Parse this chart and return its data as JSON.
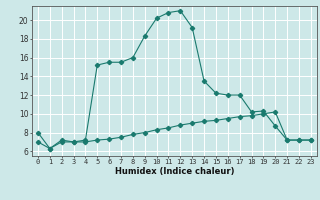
{
  "title": "",
  "xlabel": "Humidex (Indice chaleur)",
  "ylabel": "",
  "bg_color": "#cde8e8",
  "line_color": "#1a7a6e",
  "grid_color": "#ffffff",
  "line1_x": [
    0,
    1,
    2,
    3,
    4,
    5,
    6,
    7,
    8,
    9,
    10,
    11,
    12,
    13,
    14,
    15,
    16,
    17,
    18,
    19,
    20,
    21,
    22,
    23
  ],
  "line1_y": [
    8.0,
    6.3,
    7.2,
    7.0,
    7.2,
    15.2,
    15.5,
    15.5,
    16.0,
    18.3,
    20.2,
    20.8,
    21.0,
    19.2,
    13.5,
    12.2,
    12.0,
    12.0,
    10.2,
    10.3,
    8.7,
    7.2,
    7.2,
    7.2
  ],
  "line2_x": [
    0,
    1,
    2,
    3,
    4,
    5,
    6,
    7,
    8,
    9,
    10,
    11,
    12,
    13,
    14,
    15,
    16,
    17,
    18,
    19,
    20,
    21,
    22,
    23
  ],
  "line2_y": [
    7.0,
    6.3,
    7.0,
    7.0,
    7.0,
    7.2,
    7.3,
    7.5,
    7.8,
    8.0,
    8.3,
    8.5,
    8.8,
    9.0,
    9.2,
    9.3,
    9.5,
    9.7,
    9.8,
    10.0,
    10.2,
    7.2,
    7.2,
    7.2
  ],
  "xlim": [
    -0.5,
    23.5
  ],
  "ylim": [
    5.5,
    21.5
  ],
  "yticks": [
    6,
    8,
    10,
    12,
    14,
    16,
    18,
    20
  ],
  "xticks": [
    0,
    1,
    2,
    3,
    4,
    5,
    6,
    7,
    8,
    9,
    10,
    11,
    12,
    13,
    14,
    15,
    16,
    17,
    18,
    19,
    20,
    21,
    22,
    23
  ],
  "xlabel_fontsize": 6.0,
  "tick_fontsize": 5.0,
  "ytick_fontsize": 5.5
}
